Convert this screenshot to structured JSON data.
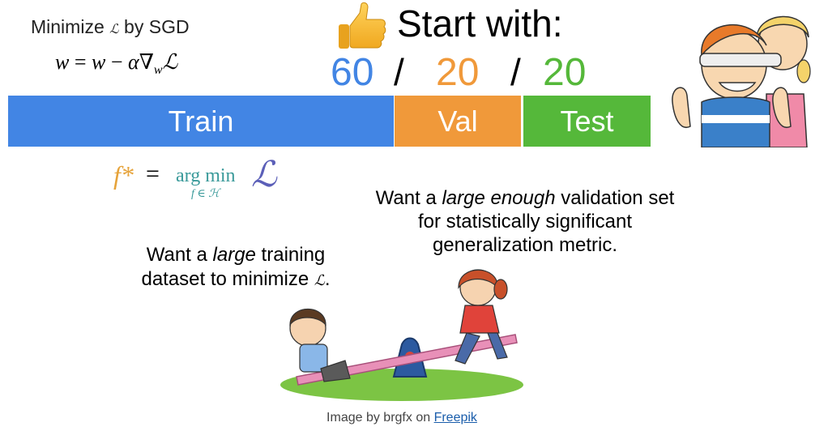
{
  "header": {
    "minimize_pre": "Minimize",
    "minimize_symbol": "ℒ",
    "minimize_post": "by SGD",
    "sgd_w1": "w",
    "sgd_eq": "=",
    "sgd_w2": "w",
    "sgd_minus": "−",
    "sgd_alpha": "α",
    "sgd_nabla": "∇",
    "sgd_sub": "w",
    "sgd_L": "ℒ"
  },
  "start": {
    "title": "Start with:"
  },
  "split": {
    "train_pct": "60",
    "val_pct": "20",
    "test_pct": "20",
    "separator": "/",
    "train_label": "Train",
    "val_label": "Val",
    "test_label": "Test",
    "train_color": "#4285e4",
    "val_color": "#f0993a",
    "test_color": "#55b83a"
  },
  "argmin": {
    "fstar": "f*",
    "eq": "=",
    "operator": "arg min",
    "subscript": "f ∈ ℋ",
    "loss": "ℒ"
  },
  "notes": {
    "train_pre": "Want a ",
    "train_em": "large",
    "train_mid": " training dataset to minimize ",
    "train_symbol": "ℒ",
    "train_post": ".",
    "val_pre": "Want a ",
    "val_em": "large enough",
    "val_post": " validation set for statistically significant generalization metric."
  },
  "credit": {
    "prefix": "Image by brgfx on",
    "link": "Freepik"
  }
}
